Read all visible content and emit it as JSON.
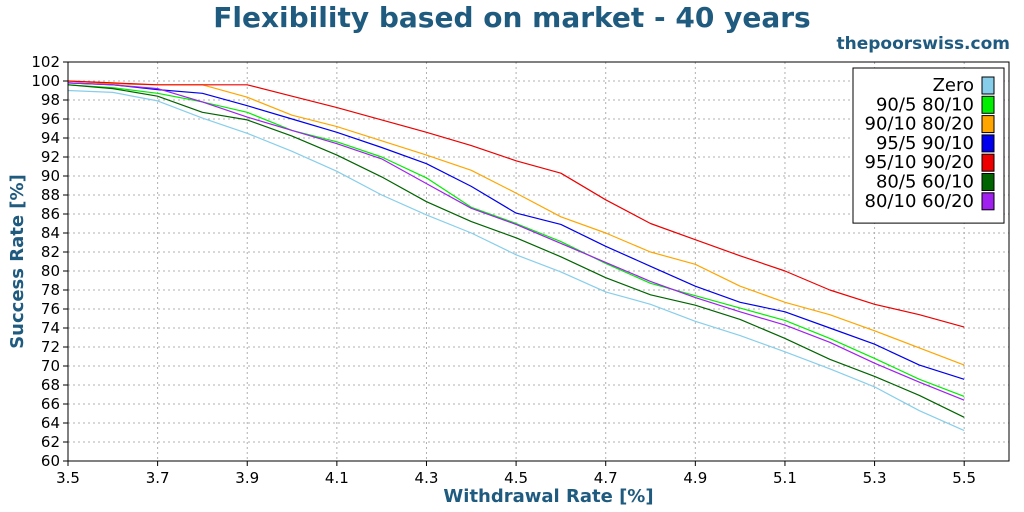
{
  "chart_data": {
    "type": "line",
    "title": "Flexibility based on market - 40 years",
    "subtitle": "thepoorswiss.com",
    "xlabel": "Withdrawal Rate [%]",
    "ylabel": "Success Rate [%]",
    "xlim": [
      3.5,
      5.6
    ],
    "ylim": [
      60,
      102
    ],
    "xticks": [
      "3.5",
      "3.7",
      "3.9",
      "4.1",
      "4.3",
      "4.5",
      "4.7",
      "4.9",
      "5.1",
      "5.3",
      "5.5"
    ],
    "yticks": [
      "60",
      "62",
      "64",
      "66",
      "68",
      "70",
      "72",
      "74",
      "76",
      "78",
      "80",
      "82",
      "84",
      "86",
      "88",
      "90",
      "92",
      "94",
      "96",
      "98",
      "100",
      "102"
    ],
    "grid": true,
    "legend_position": "top-right",
    "x": [
      3.5,
      3.6,
      3.7,
      3.8,
      3.9,
      4.0,
      4.1,
      4.2,
      4.3,
      4.4,
      4.5,
      4.6,
      4.7,
      4.8,
      4.9,
      5.0,
      5.1,
      5.2,
      5.3,
      5.4,
      5.5
    ],
    "series": [
      {
        "name": "Zero",
        "color": "#87ceeb",
        "values": [
          99.0,
          98.8,
          97.9,
          96.1,
          94.5,
          92.6,
          90.5,
          88.0,
          85.9,
          84.0,
          81.7,
          79.9,
          77.8,
          76.5,
          74.7,
          73.2,
          71.5,
          69.7,
          67.8,
          65.3,
          63.2
        ]
      },
      {
        "name": "90/5 80/10",
        "color": "#00ee00",
        "values": [
          99.6,
          99.3,
          98.7,
          97.8,
          96.7,
          94.8,
          93.6,
          92.0,
          89.8,
          86.7,
          85.0,
          83.1,
          80.8,
          78.7,
          77.4,
          76.1,
          74.8,
          72.9,
          70.8,
          68.6,
          66.8
        ]
      },
      {
        "name": "90/10 80/20",
        "color": "#ffa500",
        "values": [
          100.0,
          99.7,
          99.6,
          99.6,
          98.3,
          96.4,
          95.2,
          93.7,
          92.2,
          90.6,
          88.2,
          85.7,
          84.0,
          82.0,
          80.7,
          78.4,
          76.7,
          75.4,
          73.7,
          71.9,
          70.1
        ]
      },
      {
        "name": "95/5 90/10",
        "color": "#0000ee",
        "values": [
          99.8,
          99.6,
          99.1,
          98.7,
          97.4,
          96.0,
          94.6,
          93.0,
          91.3,
          88.9,
          86.1,
          84.9,
          82.6,
          80.5,
          78.4,
          76.7,
          75.7,
          74.0,
          72.3,
          70.1,
          68.6
        ]
      },
      {
        "name": "95/10 90/20",
        "color": "#ee0000",
        "values": [
          100.0,
          99.8,
          99.6,
          99.6,
          99.6,
          98.4,
          97.2,
          95.9,
          94.6,
          93.2,
          91.6,
          90.3,
          87.5,
          85.0,
          83.3,
          81.6,
          80.0,
          78.0,
          76.5,
          75.4,
          74.1
        ]
      },
      {
        "name": "80/5 60/10",
        "color": "#006400",
        "values": [
          99.6,
          99.2,
          98.4,
          96.7,
          95.9,
          94.2,
          92.2,
          89.9,
          87.3,
          85.2,
          83.5,
          81.5,
          79.3,
          77.5,
          76.4,
          74.9,
          72.9,
          70.7,
          68.9,
          66.9,
          64.6
        ]
      },
      {
        "name": "80/10 60/20",
        "color": "#a020f0",
        "values": [
          99.8,
          99.6,
          99.2,
          97.8,
          96.2,
          94.8,
          93.4,
          91.8,
          89.2,
          86.6,
          84.9,
          82.9,
          80.9,
          78.9,
          77.2,
          75.7,
          74.3,
          72.5,
          70.3,
          68.3,
          66.4
        ]
      }
    ]
  }
}
